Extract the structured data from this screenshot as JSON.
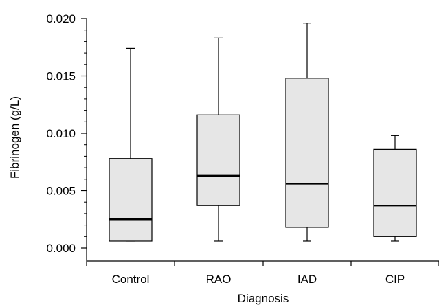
{
  "chart_data": {
    "type": "box",
    "title": "",
    "xlabel": "Diagnosis",
    "ylabel": "Fibrinogen (g/L)",
    "ylim": [
      0.0,
      0.02
    ],
    "yticks": [
      0.0,
      0.005,
      0.01,
      0.015,
      0.02
    ],
    "ytick_labels": [
      "0.000",
      "0.005",
      "0.010",
      "0.015",
      "0.020"
    ],
    "grid": false,
    "legend": "none",
    "categories": [
      "Control",
      "RAO",
      "IAD",
      "CIP"
    ],
    "boxes": [
      {
        "category": "Control",
        "min": 0.0006,
        "q1": 0.0006,
        "median": 0.0025,
        "q3": 0.0078,
        "max": 0.0174
      },
      {
        "category": "RAO",
        "min": 0.0006,
        "q1": 0.0037,
        "median": 0.0063,
        "q3": 0.0116,
        "max": 0.0183
      },
      {
        "category": "IAD",
        "min": 0.0006,
        "q1": 0.0018,
        "median": 0.0056,
        "q3": 0.0148,
        "max": 0.0196
      },
      {
        "category": "CIP",
        "min": 0.0006,
        "q1": 0.001,
        "median": 0.0037,
        "q3": 0.0086,
        "max": 0.0098
      }
    ],
    "colors": {
      "box_fill": "#e6e6e6",
      "stroke": "#000000"
    }
  }
}
